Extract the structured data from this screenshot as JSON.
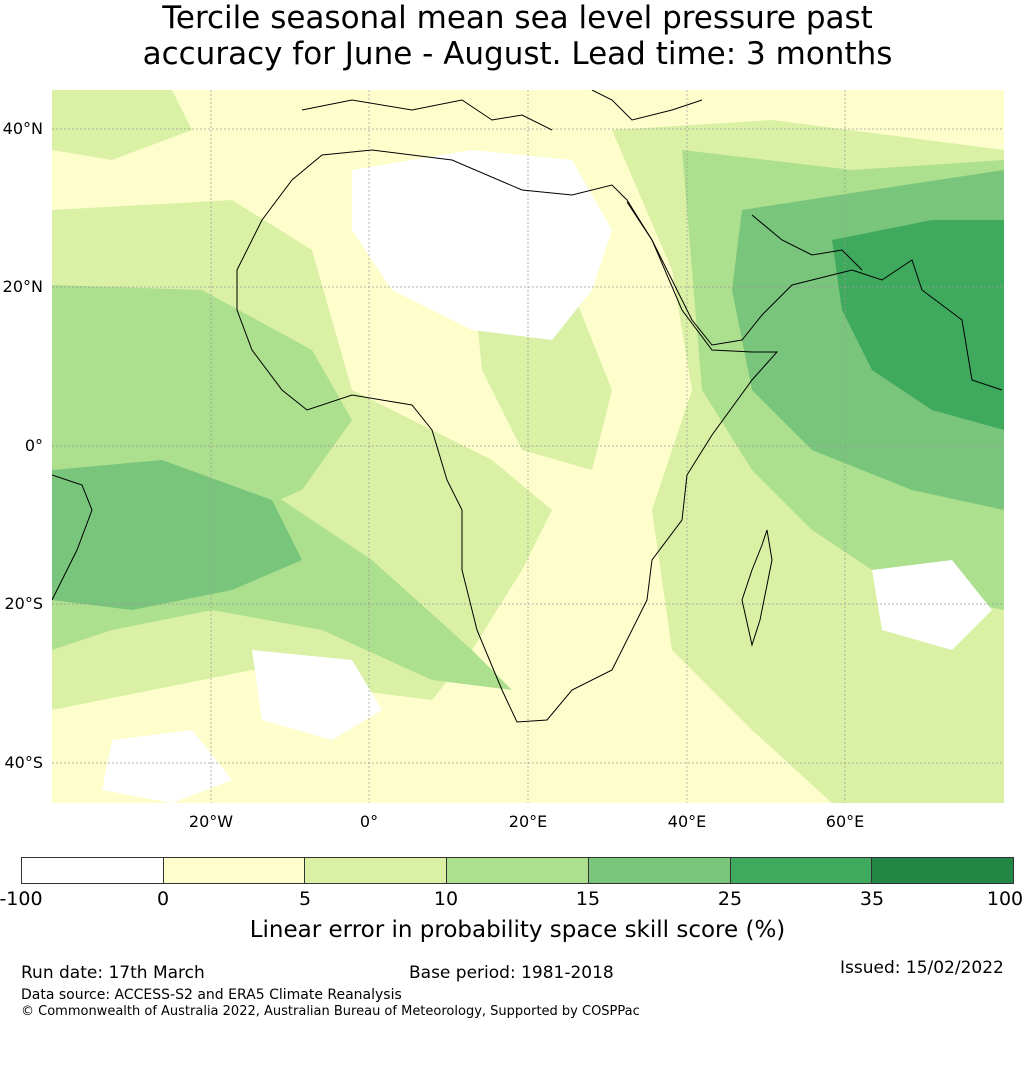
{
  "title": {
    "line1": "Tercile seasonal mean sea level pressure past",
    "line2": "accuracy for June - August. Lead time: 3 months"
  },
  "map": {
    "lat_labels": [
      "40°N",
      "20°N",
      "0°",
      "20°S",
      "40°S"
    ],
    "lon_labels": [
      "20°W",
      "0°",
      "20°E",
      "40°E",
      "60°E"
    ],
    "lat_range": [
      -45,
      45
    ],
    "lon_range": [
      -40,
      80
    ]
  },
  "colorbar": {
    "ticks": [
      "-100",
      "0",
      "5",
      "10",
      "15",
      "25",
      "35",
      "100"
    ],
    "colors": [
      "#ffffff",
      "#fefecd",
      "#daf0a5",
      "#acdf8e",
      "#79c57b",
      "#3fa95e",
      "#228745"
    ],
    "label": "Linear error in probability space skill score (%)"
  },
  "footer": {
    "run_date": "Run date: 17th March",
    "base_period": "Base period: 1981-2018",
    "issued": "Issued: 15/02/2022",
    "data_source": "Data source: ACCESS-S2 and ERA5 Climate Reanalysis",
    "copyright": "© Commonwealth of Australia 2022, Australian Bureau of Meteorology, Supported by COSPPac"
  }
}
